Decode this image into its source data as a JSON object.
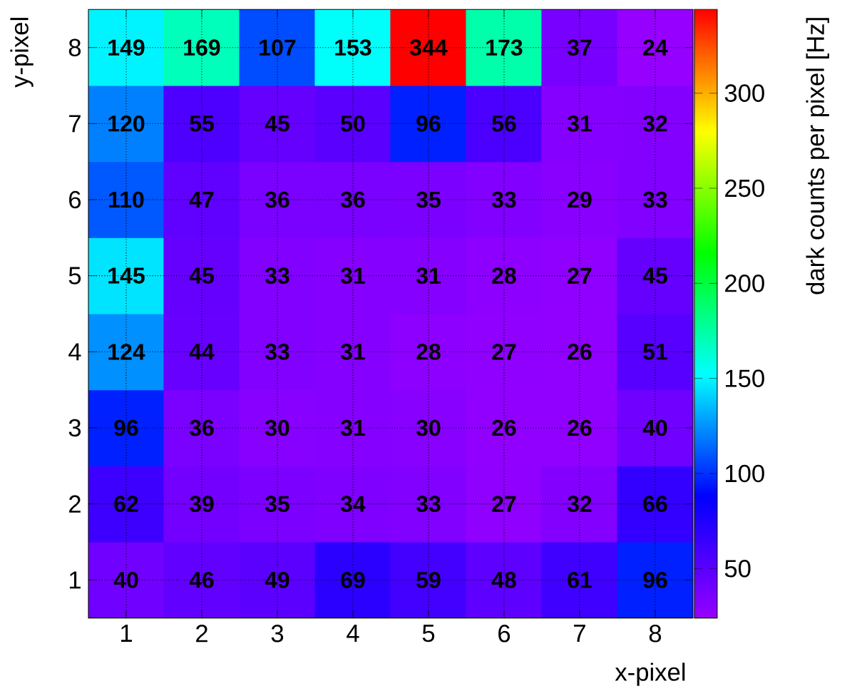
{
  "chart_data": {
    "type": "heatmap",
    "xlabel": "x-pixel",
    "ylabel": "y-pixel",
    "clabel": "dark counts per pixel  [Hz]",
    "categories": [
      "1",
      "2",
      "3",
      "4",
      "5",
      "6",
      "7",
      "8"
    ],
    "y_categories": [
      "8",
      "7",
      "6",
      "5",
      "4",
      "3",
      "2",
      "1"
    ],
    "cells": [
      [
        149,
        169,
        107,
        153,
        344,
        173,
        37,
        24
      ],
      [
        120,
        55,
        45,
        50,
        96,
        56,
        31,
        32
      ],
      [
        110,
        47,
        36,
        36,
        35,
        33,
        29,
        33
      ],
      [
        145,
        45,
        33,
        31,
        31,
        28,
        27,
        45
      ],
      [
        124,
        44,
        33,
        31,
        28,
        27,
        26,
        51
      ],
      [
        96,
        36,
        30,
        31,
        30,
        26,
        26,
        40
      ],
      [
        62,
        39,
        35,
        34,
        33,
        27,
        32,
        66
      ],
      [
        40,
        46,
        49,
        69,
        59,
        48,
        61,
        96
      ]
    ],
    "clim": [
      24,
      344
    ],
    "cticks": [
      50,
      100,
      150,
      200,
      250,
      300
    ],
    "data_labels": true,
    "grid": true
  }
}
